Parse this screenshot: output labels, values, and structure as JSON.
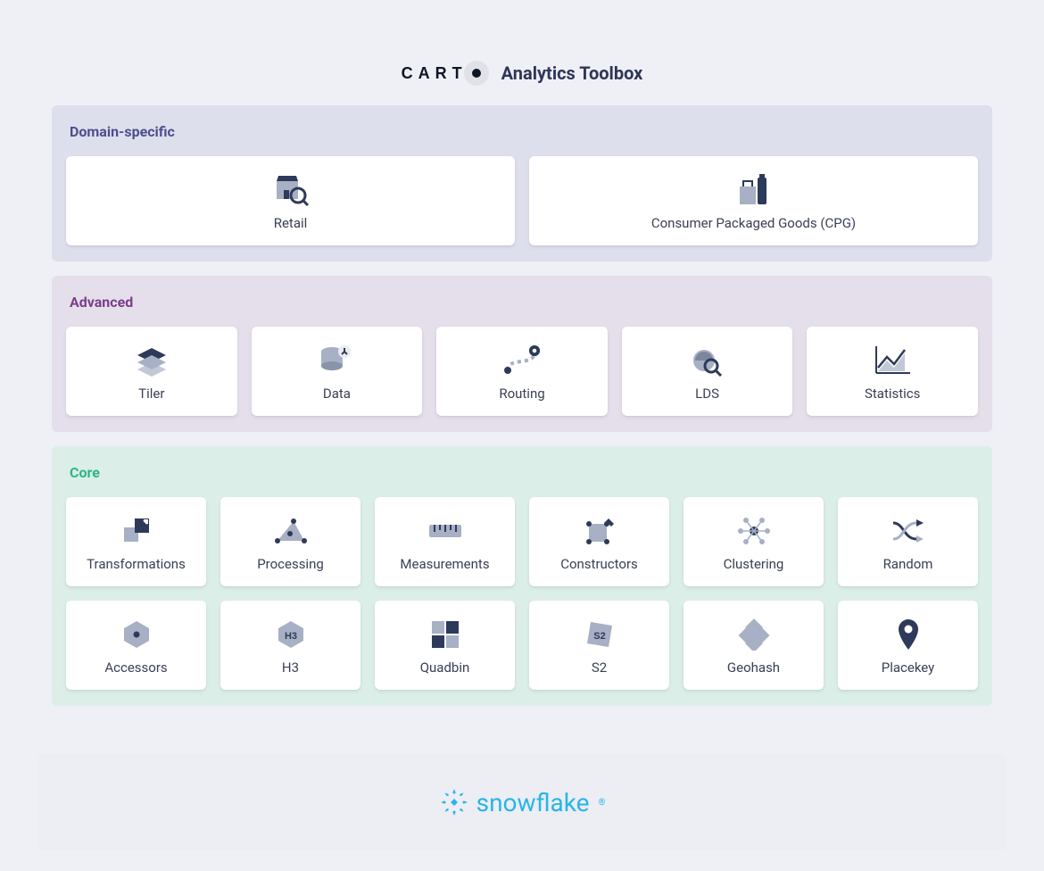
{
  "header": {
    "brand": "CART",
    "title": "Analytics Toolbox"
  },
  "colors": {
    "page_bg": "#eff0f5",
    "panel_bg": "#eef0f6",
    "card_bg": "#ffffff",
    "card_text": "#3a3f54",
    "icon_dark": "#2e3a59",
    "icon_light": "#a7b0c4",
    "snowflake": "#29b5e8"
  },
  "sections": [
    {
      "id": "domain",
      "title": "Domain-specific",
      "title_color": "#4a4f8f",
      "bg_color": "#dedfec",
      "columns": 2,
      "cards": [
        {
          "id": "retail",
          "label": "Retail",
          "icon": "retail-icon"
        },
        {
          "id": "cpg",
          "label": "Consumer Packaged Goods (CPG)",
          "icon": "cpg-icon"
        }
      ]
    },
    {
      "id": "advanced",
      "title": "Advanced",
      "title_color": "#7a3f8a",
      "bg_color": "#e5dfeb",
      "columns": 5,
      "cards": [
        {
          "id": "tiler",
          "label": "Tiler",
          "icon": "tiler-icon"
        },
        {
          "id": "data",
          "label": "Data",
          "icon": "data-icon"
        },
        {
          "id": "routing",
          "label": "Routing",
          "icon": "routing-icon"
        },
        {
          "id": "lds",
          "label": "LDS",
          "icon": "lds-icon"
        },
        {
          "id": "statistics",
          "label": "Statistics",
          "icon": "statistics-icon"
        }
      ]
    },
    {
      "id": "core",
      "title": "Core",
      "title_color": "#2fb58a",
      "bg_color": "#dbeee8",
      "columns": 6,
      "cards": [
        {
          "id": "transformations",
          "label": "Transformations",
          "icon": "transformations-icon"
        },
        {
          "id": "processing",
          "label": "Processing",
          "icon": "processing-icon"
        },
        {
          "id": "measurements",
          "label": "Measurements",
          "icon": "measurements-icon"
        },
        {
          "id": "constructors",
          "label": "Constructors",
          "icon": "constructors-icon"
        },
        {
          "id": "clustering",
          "label": "Clustering",
          "icon": "clustering-icon"
        },
        {
          "id": "random",
          "label": "Random",
          "icon": "random-icon"
        },
        {
          "id": "accessors",
          "label": "Accessors",
          "icon": "accessors-icon"
        },
        {
          "id": "h3",
          "label": "H3",
          "icon": "h3-icon"
        },
        {
          "id": "quadbin",
          "label": "Quadbin",
          "icon": "quadbin-icon"
        },
        {
          "id": "s2",
          "label": "S2",
          "icon": "s2-icon"
        },
        {
          "id": "geohash",
          "label": "Geohash",
          "icon": "geohash-icon"
        },
        {
          "id": "placekey",
          "label": "Placekey",
          "icon": "placekey-icon"
        }
      ]
    }
  ],
  "footer": {
    "brand": "snowflake"
  }
}
